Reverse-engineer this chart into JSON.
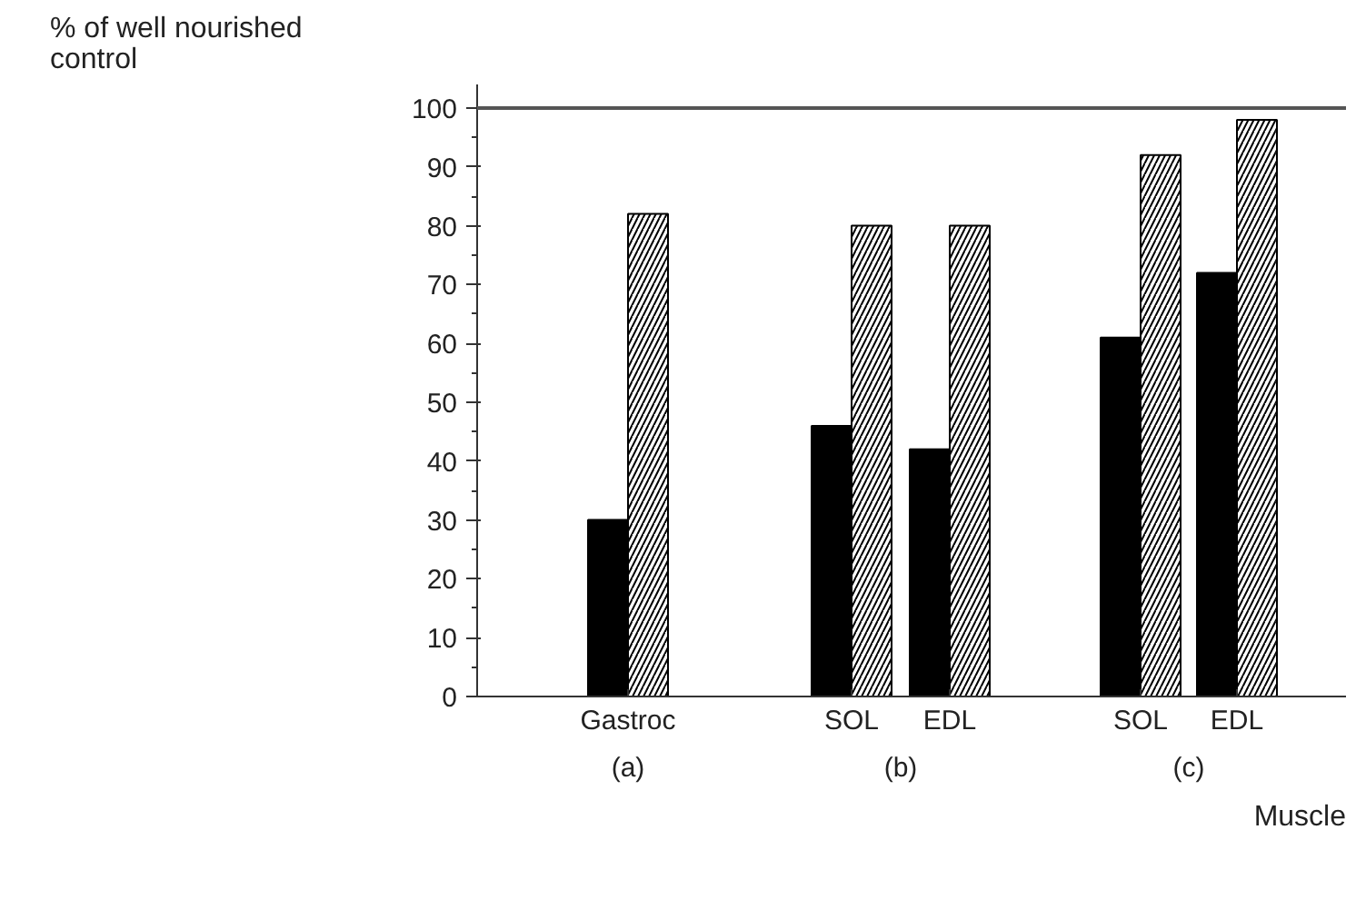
{
  "chart_data": {
    "type": "bar",
    "ylabel": "% of well nourished control",
    "xlabel": "Muscle",
    "categories": [
      "Gastroc",
      "SOL",
      "EDL",
      "SOL",
      "EDL"
    ],
    "series": [
      {
        "color": "#000000",
        "values": [
          30,
          46,
          42,
          61,
          72
        ]
      },
      {
        "color": "#ffffff",
        "values": [
          82,
          80,
          80,
          92,
          98
        ]
      }
    ],
    "ylim": [
      0,
      104
    ],
    "yticks": [
      0,
      10,
      20,
      30,
      40,
      50,
      60,
      70,
      80,
      90,
      100
    ],
    "ref_lines": [
      {
        "axis": "y",
        "value": 100,
        "color": "#555555"
      }
    ],
    "annotations": [
      "(a)",
      "(b)",
      "(c)"
    ],
    "grid": false
  }
}
